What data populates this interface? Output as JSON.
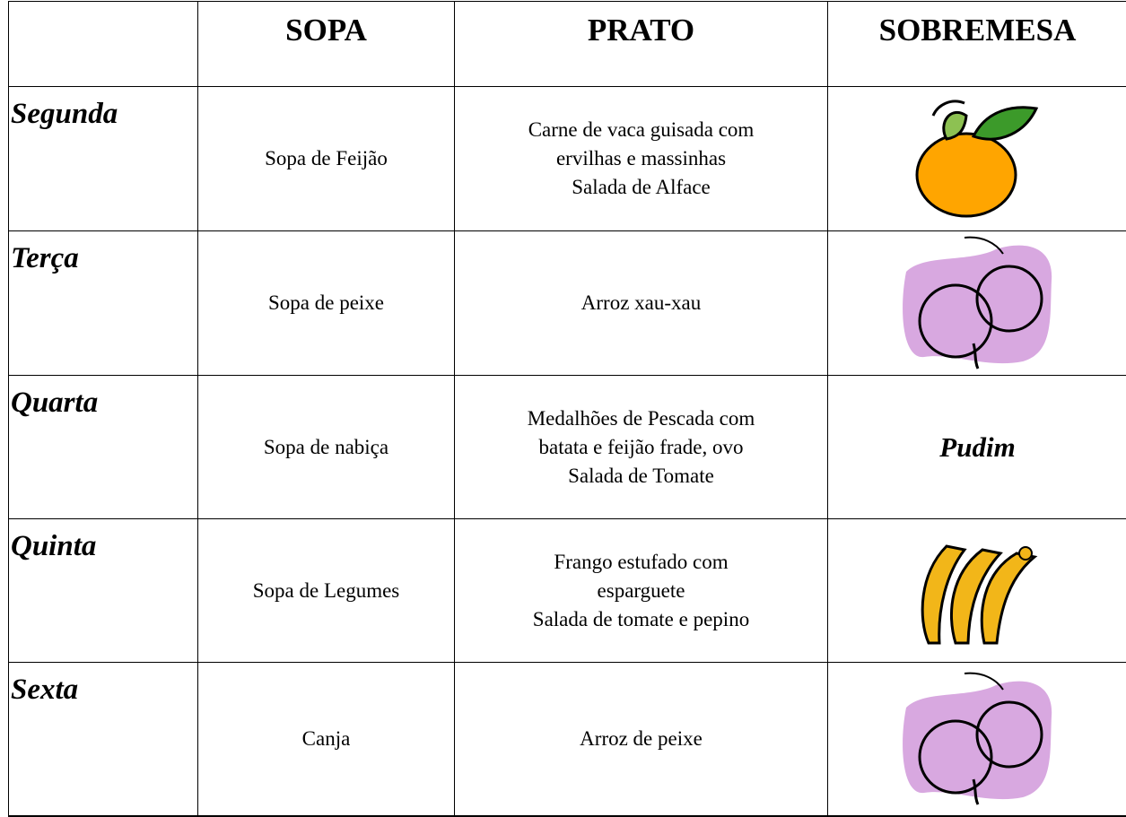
{
  "table": {
    "header": [
      "SOPA",
      "PRATO",
      "SOBREMESA"
    ],
    "rows": [
      {
        "day": "Segunda",
        "soup": "Sopa de Feijão",
        "dish": [
          "Carne de vaca guisada com",
          "ervilhas e massinhas",
          "Salada de Alface"
        ]
      },
      {
        "day": "Terça",
        "soup": "Sopa de peixe",
        "dish": [
          "Arroz xau-xau"
        ]
      },
      {
        "day": "Quarta",
        "soup": "Sopa de nabiça",
        "dish": [
          "Medalhões de Pescada com",
          "batata e feijão frade, ovo",
          "Salada de Tomate"
        ],
        "dessert": "Pudim"
      },
      {
        "day": "Quinta",
        "soup": "Sopa de Legumes",
        "dish": [
          "Frango estufado com",
          "esparguete",
          "Salada de tomate e pepino"
        ]
      },
      {
        "day": "Sexta",
        "soup": "Canja",
        "dish": [
          "Arroz de peixe"
        ]
      }
    ]
  }
}
